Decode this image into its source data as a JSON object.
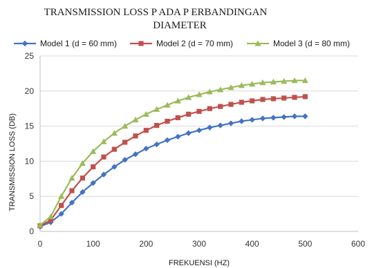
{
  "chart_data": {
    "type": "line",
    "title_lines": [
      "TRANSMISSION LOSS P ADA P ERBANDINGAN",
      "DIAMETER"
    ],
    "xlabel": "FREKUENSI (HZ)",
    "ylabel": "TRANSMISSION LOSS (DB)",
    "xlim": [
      0,
      600
    ],
    "ylim": [
      0,
      25
    ],
    "x_ticks": [
      0,
      100,
      200,
      300,
      400,
      500,
      600
    ],
    "y_ticks": [
      0,
      5,
      10,
      15,
      20,
      25
    ],
    "grid": "horizontal",
    "legend_position": "top",
    "x": [
      0,
      20,
      40,
      60,
      80,
      100,
      120,
      140,
      160,
      180,
      200,
      220,
      240,
      260,
      280,
      300,
      320,
      340,
      360,
      380,
      400,
      420,
      440,
      460,
      480,
      500
    ],
    "series": [
      {
        "name": "Model 1 (d = 60 mm)",
        "color": "#4472c4",
        "marker": "diamond",
        "values": [
          0.7,
          1.3,
          2.5,
          4.1,
          5.6,
          6.9,
          8.1,
          9.2,
          10.2,
          11.0,
          11.8,
          12.4,
          13.0,
          13.5,
          14.0,
          14.4,
          14.8,
          15.1,
          15.4,
          15.7,
          15.9,
          16.1,
          16.2,
          16.3,
          16.4,
          16.4
        ]
      },
      {
        "name": "Model 2 (d = 70 mm)",
        "color": "#c0504d",
        "marker": "square",
        "values": [
          0.8,
          1.6,
          3.7,
          5.8,
          7.6,
          9.2,
          10.6,
          11.7,
          12.7,
          13.6,
          14.4,
          15.1,
          15.7,
          16.2,
          16.7,
          17.1,
          17.5,
          17.8,
          18.1,
          18.4,
          18.6,
          18.8,
          18.9,
          19.0,
          19.1,
          19.2
        ]
      },
      {
        "name": "Model 3 (d = 80 mm)",
        "color": "#9bbb59",
        "marker": "triangle",
        "values": [
          0.9,
          2.1,
          5.0,
          7.6,
          9.7,
          11.4,
          12.8,
          14.0,
          15.0,
          15.9,
          16.7,
          17.4,
          18.0,
          18.6,
          19.1,
          19.5,
          19.9,
          20.2,
          20.5,
          20.8,
          21.0,
          21.2,
          21.3,
          21.4,
          21.5,
          21.5
        ]
      }
    ]
  }
}
